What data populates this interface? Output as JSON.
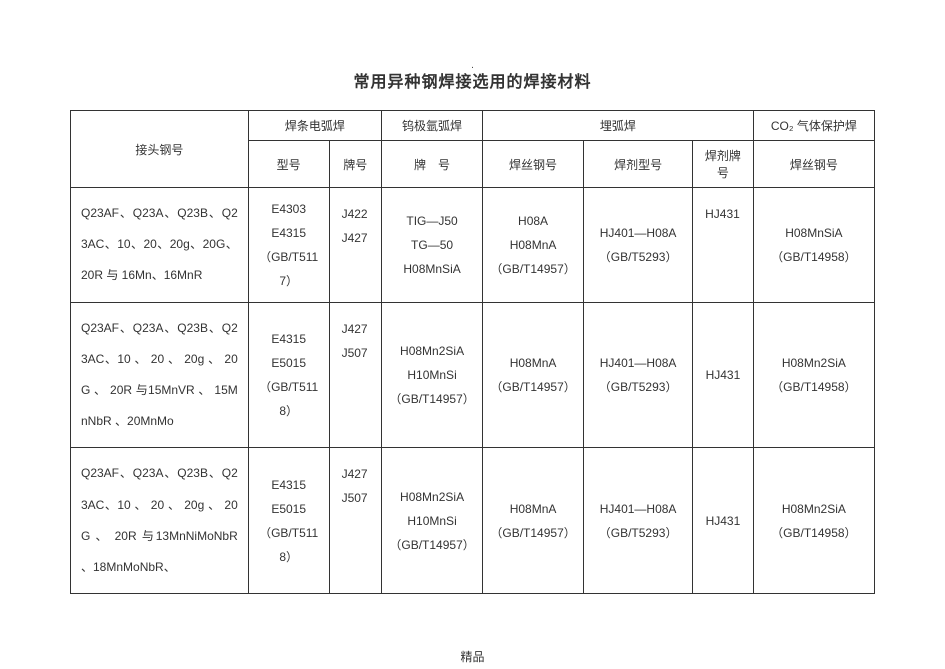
{
  "title": "常用异种钢焊接选用的焊接材料",
  "footer": "精品",
  "headers": {
    "joint_type": "接头钢号",
    "smaw": "焊条电弧焊",
    "smaw_model": "型号",
    "smaw_brand": "牌号",
    "tig": "钨极氩弧焊",
    "tig_sub": "牌　号",
    "saw": "埋弧焊",
    "saw_wire": "焊丝钢号",
    "saw_flux_model": "焊剂型号",
    "saw_flux_brand": "焊剂牌号",
    "co2": "CO₂ 气体保护焊",
    "co2_wire": "焊丝钢号"
  },
  "rows": [
    {
      "joint": "Q23AF、Q23A、Q23B、Q23AC、10、20、20g、20G、20R 与 16Mn、16MnR",
      "smaw_model": "E4303\nE4315\n（GB/T5117）",
      "smaw_brand": "J422\nJ427",
      "tig": "TIG—J50\nTG—50\nH08MnSiA",
      "saw_wire": "H08A\nH08MnA\n（GB/T14957）",
      "saw_flux_model": "HJ401—H08A\n（GB/T5293）",
      "saw_flux_brand": "HJ431",
      "co2_wire": "H08MnSiA\n（GB/T14958）"
    },
    {
      "joint": "Q23AF、Q23A、Q23B、Q23AC、10 、 20 、 20g 、 20G 、 20R  与15MnVR 、 15MnNbR 、20MnMo",
      "smaw_model": "E4315\nE5015\n（GB/T5118）",
      "smaw_brand": "J427\nJ507",
      "tig": "H08Mn2SiA\nH10MnSi\n（GB/T14957）",
      "saw_wire": "H08MnA\n（GB/T14957）",
      "saw_flux_model": "HJ401—H08A\n（GB/T5293）",
      "saw_flux_brand": "HJ431",
      "co2_wire": "H08Mn2SiA\n（GB/T14958）"
    },
    {
      "joint": "Q23AF、Q23A、Q23B、Q23AC、10 、 20 、 20g 、 20G 、 20R  与13MnNiMoNbR             、18MnMoNbR、",
      "smaw_model": "E4315\nE5015\n（GB/T5118）",
      "smaw_brand": "J427\nJ507",
      "tig": "H08Mn2SiA\nH10MnSi\n（GB/T14957）",
      "saw_wire": "H08MnA\n（GB/T14957）",
      "saw_flux_model": "HJ401—H08A\n（GB/T5293）",
      "saw_flux_brand": "HJ431",
      "co2_wire": "H08Mn2SiA\n（GB/T14958）"
    }
  ]
}
